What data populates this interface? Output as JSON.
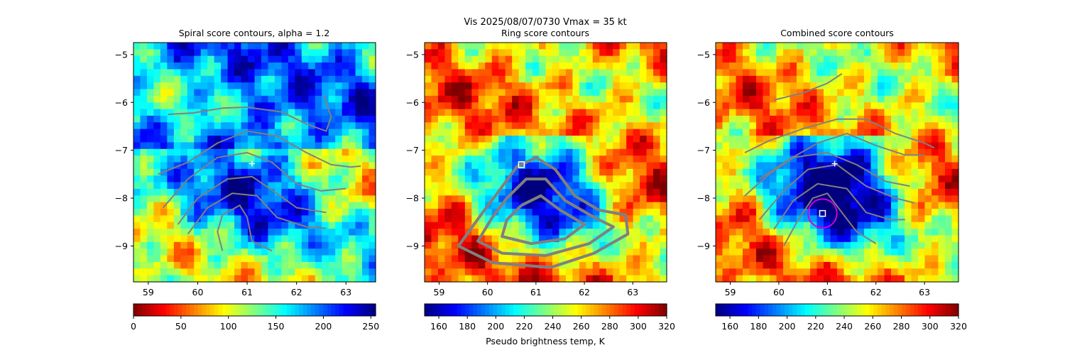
{
  "suptitle": "Vis  2025/08/07/0730    Vmax = 35 kt",
  "colors": {
    "contour": "#808080",
    "marker": "#ffffff",
    "circle": "#d400d4",
    "jet": [
      "#00007f",
      "#0000ff",
      "#007fff",
      "#00ffff",
      "#7fff7f",
      "#ffff00",
      "#ff7f00",
      "#ff0000",
      "#7f0000"
    ]
  },
  "chart_data": [
    {
      "type": "heatmap",
      "title": "Spiral score contours, alpha =  1.2",
      "xlim": [
        58.7,
        63.6
      ],
      "ylim": [
        -9.75,
        -4.75
      ],
      "xticks": [
        "59",
        "60",
        "61",
        "62",
        "63"
      ],
      "yticks": [
        "-5",
        "-6",
        "-7",
        "-8",
        "-9"
      ],
      "colorbar": {
        "label": "",
        "range": [
          0,
          255
        ],
        "ticks": [
          "0",
          "50",
          "100",
          "150",
          "200",
          "250"
        ],
        "reversed": true
      },
      "markers": [
        {
          "shape": "plus",
          "x": 61.1,
          "y": -7.28
        }
      ],
      "contours": [
        [
          [
            59.4,
            -6.25
          ],
          [
            59.9,
            -6.22
          ],
          [
            60.5,
            -6.12
          ],
          [
            61.0,
            -6.1
          ],
          [
            61.7,
            -6.2
          ],
          [
            62.2,
            -6.45
          ],
          [
            62.6,
            -6.6
          ],
          [
            62.7,
            -6.3
          ],
          [
            62.55,
            -5.85
          ]
        ],
        [
          [
            59.2,
            -7.5
          ],
          [
            59.8,
            -7.25
          ],
          [
            60.4,
            -6.85
          ],
          [
            61.0,
            -6.6
          ],
          [
            61.6,
            -6.7
          ],
          [
            62.2,
            -7.05
          ],
          [
            62.7,
            -7.3
          ],
          [
            63.1,
            -7.35
          ],
          [
            63.3,
            -7.33
          ]
        ],
        [
          [
            59.3,
            -8.2
          ],
          [
            59.8,
            -7.6
          ],
          [
            60.4,
            -7.15
          ],
          [
            61.0,
            -7.05
          ],
          [
            61.5,
            -7.25
          ],
          [
            62.0,
            -7.7
          ],
          [
            62.5,
            -7.85
          ],
          [
            63.0,
            -7.8
          ]
        ],
        [
          [
            59.6,
            -8.55
          ],
          [
            60.0,
            -8.0
          ],
          [
            60.6,
            -7.6
          ],
          [
            61.1,
            -7.55
          ],
          [
            61.6,
            -7.9
          ],
          [
            62.0,
            -8.2
          ],
          [
            62.6,
            -8.3
          ]
        ],
        [
          [
            59.8,
            -8.75
          ],
          [
            60.2,
            -8.2
          ],
          [
            60.7,
            -7.9
          ],
          [
            61.2,
            -7.95
          ],
          [
            61.6,
            -8.4
          ],
          [
            62.2,
            -8.6
          ],
          [
            62.6,
            -8.63
          ]
        ],
        [
          [
            60.5,
            -9.1
          ],
          [
            60.4,
            -8.7
          ],
          [
            60.5,
            -8.35
          ],
          [
            60.85,
            -8.15
          ],
          [
            61.0,
            -8.4
          ],
          [
            61.1,
            -8.9
          ],
          [
            61.5,
            -9.1
          ]
        ]
      ]
    },
    {
      "type": "heatmap",
      "title": "Ring score contours",
      "xlim": [
        58.7,
        63.7
      ],
      "ylim": [
        -9.75,
        -4.75
      ],
      "xticks": [
        "59",
        "60",
        "61",
        "62",
        "63"
      ],
      "yticks": [
        "-5",
        "-6",
        "-7",
        "-8",
        "-9"
      ],
      "colorbar": {
        "label": "Pseudo brightness temp, K",
        "range": [
          150,
          320
        ],
        "ticks": [
          "160",
          "180",
          "200",
          "220",
          "240",
          "260",
          "280",
          "300",
          "320"
        ],
        "reversed": false
      },
      "markers": [
        {
          "shape": "square",
          "x": 60.7,
          "y": -7.3
        }
      ],
      "contours": [
        [
          [
            60.2,
            -7.9
          ],
          [
            60.6,
            -7.35
          ],
          [
            61.0,
            -7.15
          ],
          [
            61.4,
            -7.4
          ],
          [
            61.8,
            -7.95
          ],
          [
            62.3,
            -8.25
          ],
          [
            62.85,
            -8.35
          ],
          [
            62.9,
            -8.75
          ],
          [
            62.2,
            -9.15
          ],
          [
            61.3,
            -9.45
          ],
          [
            60.1,
            -9.35
          ],
          [
            59.4,
            -9.0
          ],
          [
            59.9,
            -8.3
          ],
          [
            60.2,
            -7.9
          ]
        ],
        [
          [
            60.4,
            -8.0
          ],
          [
            60.8,
            -7.6
          ],
          [
            61.2,
            -7.6
          ],
          [
            61.6,
            -8.05
          ],
          [
            62.2,
            -8.4
          ],
          [
            62.6,
            -8.6
          ],
          [
            62.1,
            -8.95
          ],
          [
            61.2,
            -9.2
          ],
          [
            60.3,
            -9.15
          ],
          [
            59.8,
            -8.9
          ],
          [
            60.1,
            -8.4
          ],
          [
            60.4,
            -8.0
          ]
        ],
        [
          [
            60.7,
            -8.15
          ],
          [
            61.1,
            -7.95
          ],
          [
            61.5,
            -8.25
          ],
          [
            62.0,
            -8.55
          ],
          [
            61.6,
            -8.85
          ],
          [
            60.9,
            -8.95
          ],
          [
            60.3,
            -8.8
          ],
          [
            60.4,
            -8.45
          ],
          [
            60.7,
            -8.15
          ]
        ]
      ]
    },
    {
      "type": "heatmap",
      "title": "Combined score contours",
      "xlim": [
        58.7,
        63.7
      ],
      "ylim": [
        -9.75,
        -4.75
      ],
      "xticks": [
        "59",
        "60",
        "61",
        "62",
        "63"
      ],
      "yticks": [
        "-5",
        "-6",
        "-7",
        "-8",
        "-9"
      ],
      "colorbar": {
        "label": "",
        "range": [
          150,
          320
        ],
        "ticks": [
          "160",
          "180",
          "200",
          "220",
          "240",
          "260",
          "280",
          "300",
          "320"
        ],
        "reversed": false
      },
      "markers": [
        {
          "shape": "plus",
          "x": 61.15,
          "y": -7.28
        },
        {
          "shape": "square",
          "x": 60.9,
          "y": -8.32
        },
        {
          "shape": "circle",
          "x": 60.9,
          "y": -8.32,
          "radius": 0.3
        }
      ],
      "contours": [
        [
          [
            59.9,
            -5.95
          ],
          [
            60.5,
            -5.8
          ],
          [
            61.0,
            -5.6
          ],
          [
            61.3,
            -5.4
          ]
        ],
        [
          [
            59.3,
            -7.05
          ],
          [
            59.8,
            -6.8
          ],
          [
            60.5,
            -6.55
          ],
          [
            61.2,
            -6.35
          ],
          [
            61.8,
            -6.35
          ],
          [
            62.4,
            -6.65
          ],
          [
            63.0,
            -6.85
          ],
          [
            63.2,
            -6.95
          ]
        ],
        [
          [
            59.6,
            -7.6
          ],
          [
            60.2,
            -7.2
          ],
          [
            60.8,
            -6.85
          ],
          [
            61.4,
            -6.65
          ],
          [
            62.0,
            -6.9
          ],
          [
            62.6,
            -7.1
          ],
          [
            63.0,
            -7.1
          ]
        ],
        [
          [
            59.3,
            -7.95
          ],
          [
            59.8,
            -7.5
          ],
          [
            60.3,
            -7.15
          ],
          [
            61.0,
            -7.05
          ],
          [
            61.6,
            -7.3
          ],
          [
            62.2,
            -7.65
          ],
          [
            62.7,
            -7.75
          ]
        ],
        [
          [
            59.6,
            -8.45
          ],
          [
            60.1,
            -7.85
          ],
          [
            60.6,
            -7.4
          ],
          [
            61.2,
            -7.3
          ],
          [
            61.8,
            -7.75
          ],
          [
            62.4,
            -8.0
          ],
          [
            62.8,
            -8.1
          ]
        ],
        [
          [
            59.9,
            -8.65
          ],
          [
            60.3,
            -8.05
          ],
          [
            60.8,
            -7.7
          ],
          [
            61.4,
            -7.8
          ],
          [
            61.8,
            -8.3
          ],
          [
            62.3,
            -8.45
          ],
          [
            62.6,
            -8.45
          ]
        ],
        [
          [
            60.1,
            -9.0
          ],
          [
            60.4,
            -8.45
          ],
          [
            60.7,
            -8.0
          ],
          [
            61.0,
            -7.9
          ],
          [
            61.3,
            -8.3
          ],
          [
            61.6,
            -8.7
          ],
          [
            62.0,
            -8.95
          ]
        ]
      ]
    }
  ]
}
